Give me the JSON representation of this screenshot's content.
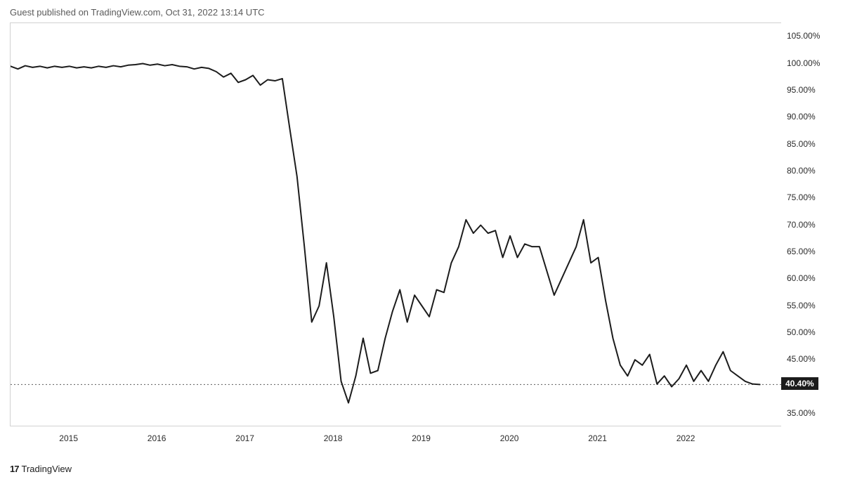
{
  "header": {
    "text": "Guest published on TradingView.com, Oct 31, 2022 13:14 UTC"
  },
  "footer": {
    "logo": "17",
    "brand": "TradingView"
  },
  "chart": {
    "type": "line",
    "background_color": "#ffffff",
    "border_color": "#d1d1d1",
    "line_color": "#1c1c1c",
    "line_width": 2,
    "last_line_color": "#5a5a5a",
    "last_badge_bg": "#1c1c1c",
    "last_badge_fg": "#ffffff",
    "last_value": 40.4,
    "last_label": "40.40%",
    "y_axis": {
      "min": 32.5,
      "max": 107.5,
      "ticks": [
        35.0,
        40.0,
        45.0,
        50.0,
        55.0,
        60.0,
        65.0,
        70.0,
        75.0,
        80.0,
        85.0,
        90.0,
        95.0,
        100.0,
        105.0
      ],
      "tick_labels": [
        "35.00%",
        "40.00%",
        "45.00%",
        "50.00%",
        "55.00%",
        "60.00%",
        "65.00%",
        "70.00%",
        "75.00%",
        "80.00%",
        "85.00%",
        "90.00%",
        "95.00%",
        "100.00%",
        "105.00%"
      ],
      "label_fontsize": 12,
      "label_color": "#2a2a2a"
    },
    "x_axis": {
      "min": 0,
      "max": 105,
      "ticks": [
        8,
        20,
        32,
        44,
        56,
        68,
        80,
        92
      ],
      "tick_labels": [
        "2015",
        "2016",
        "2017",
        "2018",
        "2019",
        "2020",
        "2021",
        "2022"
      ],
      "label_fontsize": 12,
      "label_color": "#2a2a2a"
    },
    "series": [
      {
        "x": 0,
        "y": 99.5
      },
      {
        "x": 1,
        "y": 99.0
      },
      {
        "x": 2,
        "y": 99.6
      },
      {
        "x": 3,
        "y": 99.3
      },
      {
        "x": 4,
        "y": 99.5
      },
      {
        "x": 5,
        "y": 99.2
      },
      {
        "x": 6,
        "y": 99.5
      },
      {
        "x": 7,
        "y": 99.3
      },
      {
        "x": 8,
        "y": 99.5
      },
      {
        "x": 9,
        "y": 99.2
      },
      {
        "x": 10,
        "y": 99.4
      },
      {
        "x": 11,
        "y": 99.2
      },
      {
        "x": 12,
        "y": 99.5
      },
      {
        "x": 13,
        "y": 99.3
      },
      {
        "x": 14,
        "y": 99.6
      },
      {
        "x": 15,
        "y": 99.4
      },
      {
        "x": 16,
        "y": 99.7
      },
      {
        "x": 17,
        "y": 99.8
      },
      {
        "x": 18,
        "y": 100.0
      },
      {
        "x": 19,
        "y": 99.7
      },
      {
        "x": 20,
        "y": 99.9
      },
      {
        "x": 21,
        "y": 99.6
      },
      {
        "x": 22,
        "y": 99.8
      },
      {
        "x": 23,
        "y": 99.5
      },
      {
        "x": 24,
        "y": 99.4
      },
      {
        "x": 25,
        "y": 99.0
      },
      {
        "x": 26,
        "y": 99.3
      },
      {
        "x": 27,
        "y": 99.1
      },
      {
        "x": 28,
        "y": 98.5
      },
      {
        "x": 29,
        "y": 97.5
      },
      {
        "x": 30,
        "y": 98.2
      },
      {
        "x": 31,
        "y": 96.5
      },
      {
        "x": 32,
        "y": 97.0
      },
      {
        "x": 33,
        "y": 97.8
      },
      {
        "x": 34,
        "y": 96.0
      },
      {
        "x": 35,
        "y": 97.0
      },
      {
        "x": 36,
        "y": 96.8
      },
      {
        "x": 37,
        "y": 97.2
      },
      {
        "x": 38,
        "y": 88.0
      },
      {
        "x": 39,
        "y": 79.0
      },
      {
        "x": 40,
        "y": 66.0
      },
      {
        "x": 41,
        "y": 52.0
      },
      {
        "x": 42,
        "y": 55.0
      },
      {
        "x": 43,
        "y": 63.0
      },
      {
        "x": 44,
        "y": 53.0
      },
      {
        "x": 45,
        "y": 41.0
      },
      {
        "x": 46,
        "y": 37.0
      },
      {
        "x": 47,
        "y": 42.0
      },
      {
        "x": 48,
        "y": 49.0
      },
      {
        "x": 49,
        "y": 42.5
      },
      {
        "x": 50,
        "y": 43.0
      },
      {
        "x": 51,
        "y": 49.0
      },
      {
        "x": 52,
        "y": 54.0
      },
      {
        "x": 53,
        "y": 58.0
      },
      {
        "x": 54,
        "y": 52.0
      },
      {
        "x": 55,
        "y": 57.0
      },
      {
        "x": 56,
        "y": 55.0
      },
      {
        "x": 57,
        "y": 53.0
      },
      {
        "x": 58,
        "y": 58.0
      },
      {
        "x": 59,
        "y": 57.5
      },
      {
        "x": 60,
        "y": 63.0
      },
      {
        "x": 61,
        "y": 66.0
      },
      {
        "x": 62,
        "y": 71.0
      },
      {
        "x": 63,
        "y": 68.5
      },
      {
        "x": 64,
        "y": 70.0
      },
      {
        "x": 65,
        "y": 68.5
      },
      {
        "x": 66,
        "y": 69.0
      },
      {
        "x": 67,
        "y": 64.0
      },
      {
        "x": 68,
        "y": 68.0
      },
      {
        "x": 69,
        "y": 64.0
      },
      {
        "x": 70,
        "y": 66.5
      },
      {
        "x": 71,
        "y": 66.0
      },
      {
        "x": 72,
        "y": 66.0
      },
      {
        "x": 73,
        "y": 61.5
      },
      {
        "x": 74,
        "y": 57.0
      },
      {
        "x": 75,
        "y": 60.0
      },
      {
        "x": 76,
        "y": 63.0
      },
      {
        "x": 77,
        "y": 66.0
      },
      {
        "x": 78,
        "y": 71.0
      },
      {
        "x": 79,
        "y": 63.0
      },
      {
        "x": 80,
        "y": 64.0
      },
      {
        "x": 81,
        "y": 56.0
      },
      {
        "x": 82,
        "y": 49.0
      },
      {
        "x": 83,
        "y": 44.0
      },
      {
        "x": 84,
        "y": 42.0
      },
      {
        "x": 85,
        "y": 45.0
      },
      {
        "x": 86,
        "y": 44.0
      },
      {
        "x": 87,
        "y": 46.0
      },
      {
        "x": 88,
        "y": 40.5
      },
      {
        "x": 89,
        "y": 42.0
      },
      {
        "x": 90,
        "y": 40.0
      },
      {
        "x": 91,
        "y": 41.5
      },
      {
        "x": 92,
        "y": 44.0
      },
      {
        "x": 93,
        "y": 41.0
      },
      {
        "x": 94,
        "y": 43.0
      },
      {
        "x": 95,
        "y": 41.0
      },
      {
        "x": 96,
        "y": 44.0
      },
      {
        "x": 97,
        "y": 46.5
      },
      {
        "x": 98,
        "y": 43.0
      },
      {
        "x": 99,
        "y": 42.0
      },
      {
        "x": 100,
        "y": 41.0
      },
      {
        "x": 101,
        "y": 40.5
      },
      {
        "x": 102,
        "y": 40.4
      }
    ]
  }
}
